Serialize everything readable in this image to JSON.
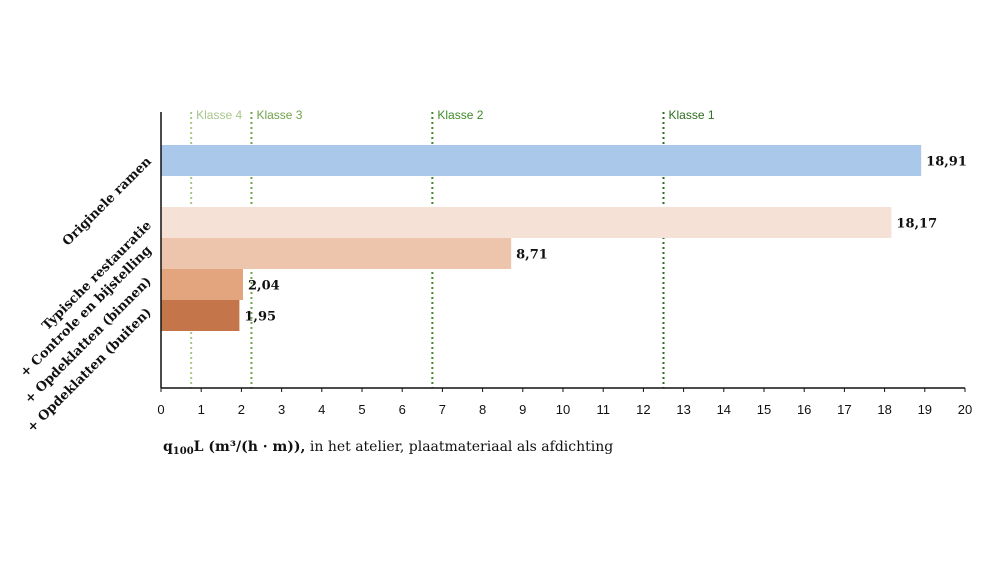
{
  "chart_data": {
    "type": "bar",
    "orientation": "horizontal",
    "groups": [
      {
        "label": "Originele ramen",
        "bars": [
          {
            "name": "Originele ramen",
            "value": 18.91,
            "value_label": "18,91",
            "color": "#a9c8ea"
          }
        ]
      },
      {
        "label": "",
        "bars": [
          {
            "name": "Typische restauratie",
            "value": 18.17,
            "value_label": "18,17",
            "color": "#f5e1d5"
          },
          {
            "name": "+ Controle en bijstelling",
            "value": 8.71,
            "value_label": "8,71",
            "color": "#ecc5ac"
          },
          {
            "name": "+ Opdeklatten (binnen)",
            "value": 2.04,
            "value_label": "2,04",
            "color": "#e2a57e"
          },
          {
            "name": "+ Opdeklatten (buiten)",
            "value": 1.95,
            "value_label": "1,95",
            "color": "#c4754a"
          }
        ]
      }
    ],
    "xlim": [
      0,
      20
    ],
    "xticks": [
      "0",
      "1",
      "2",
      "3",
      "4",
      "5",
      "6",
      "7",
      "8",
      "9",
      "10",
      "11",
      "12",
      "13",
      "14",
      "15",
      "16",
      "17",
      "18",
      "19",
      "20"
    ],
    "reference_lines": [
      {
        "label": "Klasse 4",
        "value": 0.75,
        "color": "#a8c58a"
      },
      {
        "label": "Klasse 3",
        "value": 2.25,
        "color": "#6fa24b"
      },
      {
        "label": "Klasse 2",
        "value": 6.75,
        "color": "#3f8a2a"
      },
      {
        "label": "Klasse 1",
        "value": 12.5,
        "color": "#2e6d1f"
      }
    ],
    "xlabel": {
      "symbol": "q",
      "subscript": "100",
      "rest": "L (m³/(h · m)),",
      "suffix": " in het atelier, plaatmateriaal als afdichting"
    },
    "grid": false,
    "legend": "none"
  }
}
